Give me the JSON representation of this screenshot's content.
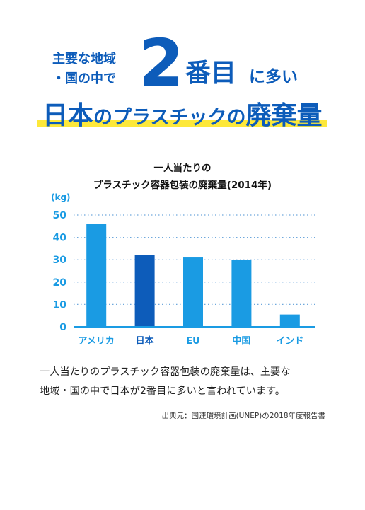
{
  "headline": {
    "line1": "主要な地域",
    "line2": "・国の中で",
    "number": "2",
    "rank_word": "番目",
    "suffix": "に多い",
    "subtitle_part1": "日本",
    "subtitle_part2": "のプラスチックの",
    "subtitle_part3": "廃棄量"
  },
  "colors": {
    "accent_dark": "#0d5cba",
    "accent_light": "#1a9be3",
    "highlight": "#fde83a"
  },
  "chart_data": {
    "type": "bar",
    "title_line1": "一人当たりの",
    "title_line2": "プラスチック容器包装の廃棄量(2014年)",
    "ylabel": "(kg)",
    "categories": [
      "アメリカ",
      "日本",
      "EU",
      "中国",
      "インド"
    ],
    "values": [
      46,
      32,
      31,
      30,
      5.5
    ],
    "highlight_category": "日本",
    "ylim": [
      0,
      50
    ],
    "yticks": [
      0,
      10,
      20,
      30,
      40,
      50
    ],
    "grid": true
  },
  "body": {
    "line1": "一人当たりのプラスチック容器包装の廃棄量は、主要な",
    "line2": "地域・国の中で日本が2番目に多いと言われています。"
  },
  "source": "出典元：国連環境計画(UNEP)の2018年度報告書"
}
